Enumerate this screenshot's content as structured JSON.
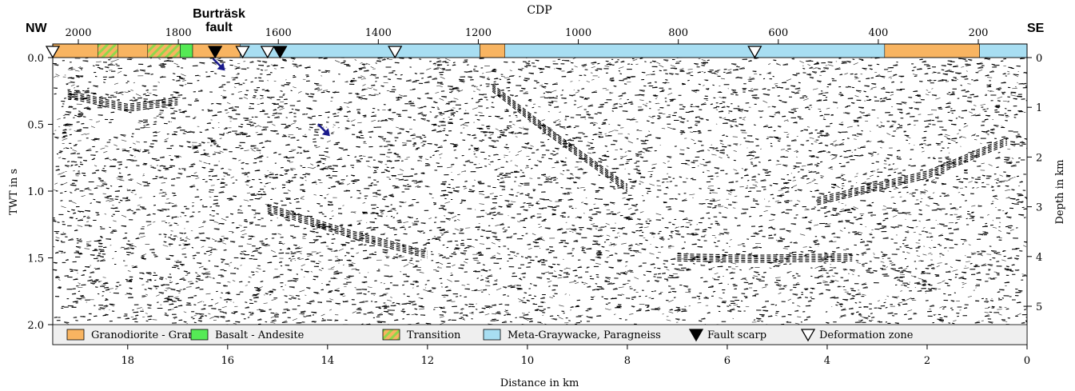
{
  "chart_data": {
    "type": "heatmap",
    "description_axes": {
      "top_label": "CDP",
      "bottom_label": "Distance in km",
      "left_label": "TWT in s",
      "right_label": "Depth in km"
    },
    "top_axis": {
      "ticks": [
        2000,
        1800,
        1600,
        1400,
        1200,
        1000,
        800,
        600,
        400,
        200
      ]
    },
    "bottom_axis": {
      "range": [
        19.5,
        0
      ],
      "ticks": [
        18,
        16,
        14,
        12,
        10,
        8,
        6,
        4,
        2,
        0
      ]
    },
    "left_axis": {
      "range": [
        0,
        2.0
      ],
      "ticks": [
        "0.0",
        "0.5",
        "1.0",
        "1.5",
        "2.0"
      ]
    },
    "right_axis": {
      "ticks": [
        0,
        1,
        2,
        3,
        4,
        5
      ]
    },
    "corner_labels": {
      "left": "NW",
      "right": "SE"
    },
    "fault_label": "Burträsk\nfault",
    "lithology_colors": {
      "granodiorite": "#f8b461",
      "basalt": "#55ea55",
      "transition_a": "#f8b461",
      "transition_b": "#90d84a",
      "meta": "#a8def2"
    },
    "lithology_segments": [
      {
        "from_km": 19.5,
        "to_km": 18.6,
        "type": "granodiorite"
      },
      {
        "from_km": 18.6,
        "to_km": 18.2,
        "type": "transition"
      },
      {
        "from_km": 18.2,
        "to_km": 17.6,
        "type": "granodiorite"
      },
      {
        "from_km": 17.6,
        "to_km": 16.95,
        "type": "transition"
      },
      {
        "from_km": 16.95,
        "to_km": 16.7,
        "type": "basalt"
      },
      {
        "from_km": 16.7,
        "to_km": 15.75,
        "type": "granodiorite"
      },
      {
        "from_km": 15.75,
        "to_km": 10.95,
        "type": "meta"
      },
      {
        "from_km": 10.95,
        "to_km": 10.45,
        "type": "granodiorite"
      },
      {
        "from_km": 10.45,
        "to_km": 2.85,
        "type": "meta"
      },
      {
        "from_km": 2.85,
        "to_km": 0.95,
        "type": "granodiorite"
      },
      {
        "from_km": 0.95,
        "to_km": 0.0,
        "type": "meta"
      }
    ],
    "markers": [
      {
        "km": 19.5,
        "kind": "deformation"
      },
      {
        "km": 16.25,
        "kind": "fault"
      },
      {
        "km": 15.7,
        "kind": "deformation"
      },
      {
        "km": 15.2,
        "kind": "deformation"
      },
      {
        "km": 14.95,
        "kind": "fault"
      },
      {
        "km": 12.65,
        "kind": "deformation"
      },
      {
        "km": 5.45,
        "kind": "deformation"
      }
    ],
    "arrows": [
      {
        "km": 16.1,
        "twt": 0.08
      },
      {
        "km": 14.0,
        "twt": 0.57
      }
    ],
    "legend": [
      {
        "label": "Granodiorite - Granite",
        "symbol": "granodiorite"
      },
      {
        "label": "Basalt - Andesite",
        "symbol": "basalt"
      },
      {
        "label": "Transition",
        "symbol": "transition"
      },
      {
        "label": "Meta-Graywacke, Paragneiss",
        "symbol": "meta"
      },
      {
        "label": "Fault scarp",
        "symbol": "fault"
      },
      {
        "label": "Deformation zone",
        "symbol": "deformation"
      }
    ]
  }
}
